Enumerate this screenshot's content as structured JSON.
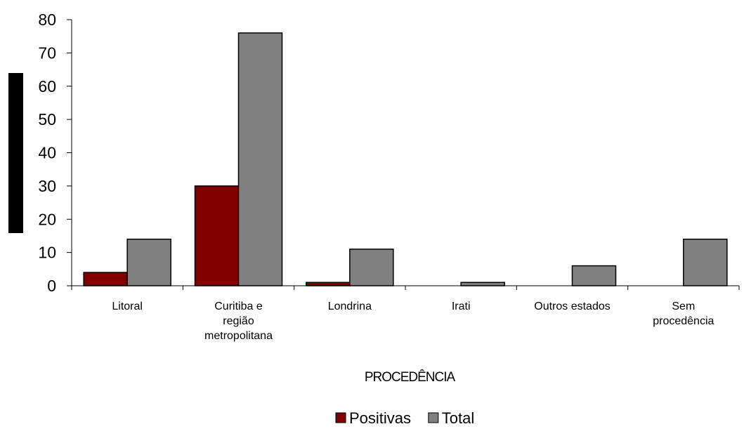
{
  "chart_data": {
    "type": "bar",
    "title": "",
    "xlabel": "PROCEDÊNCIA",
    "ylabel": "",
    "ylim": [
      0,
      80
    ],
    "yticks": [
      0,
      10,
      20,
      30,
      40,
      50,
      60,
      70,
      80
    ],
    "categories": [
      [
        "Litoral"
      ],
      [
        "Curitiba e",
        "região",
        "metropolitana"
      ],
      [
        "Londrina"
      ],
      [
        "Irati"
      ],
      [
        "Outros estados"
      ],
      [
        "Sem",
        "procedência"
      ]
    ],
    "series": [
      {
        "name": "Positivas",
        "color": "#800000",
        "values": [
          4,
          30,
          1,
          0,
          0,
          0
        ]
      },
      {
        "name": "Total",
        "color": "#808080",
        "values": [
          14,
          76,
          11,
          1,
          6,
          14
        ]
      }
    ],
    "legend": "bottom",
    "grid": false
  }
}
